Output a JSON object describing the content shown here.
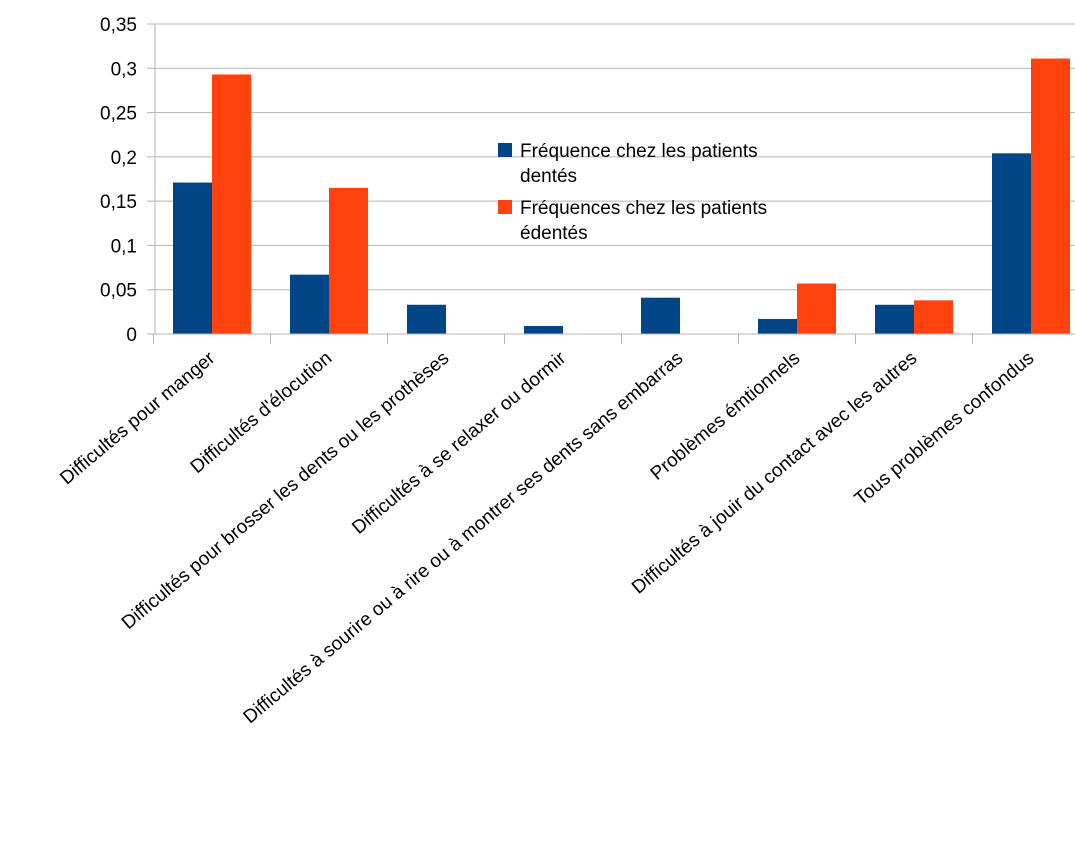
{
  "chart_data": {
    "type": "bar",
    "categories": [
      "Difficultés pour manger",
      "Difficultés d'élocution",
      "Difficultés pour brosser les dents ou les prothèses",
      "Difficultés à se relaxer ou dormir",
      "Difficultés à sourire ou à rire ou à montrer ses dents sans embarras",
      "Problèmes émtionnels",
      "Difficultés à jouir du contact avec les autres",
      "Tous problèmes confondus"
    ],
    "series": [
      {
        "name": "Fréquence chez les patients dentés",
        "legend_lines": [
          "Fréquence chez les patients",
          "dentés"
        ],
        "color": "#004586",
        "values": [
          0.171,
          0.067,
          0.033,
          0.009,
          0.041,
          0.017,
          0.033,
          0.204
        ]
      },
      {
        "name": "Fréquences chez les patients édentés",
        "legend_lines": [
          "Fréquences chez les patients",
          "édentés"
        ],
        "color": "#ff420e",
        "values": [
          0.293,
          0.165,
          0,
          0,
          0,
          0.057,
          0.038,
          0.311
        ]
      }
    ],
    "yticks": [
      "0",
      "0,05",
      "0,1",
      "0,15",
      "0,2",
      "0,25",
      "0,3",
      "0,35"
    ],
    "ylim": [
      0,
      0.35
    ],
    "grid": true,
    "legend_position": "center"
  }
}
